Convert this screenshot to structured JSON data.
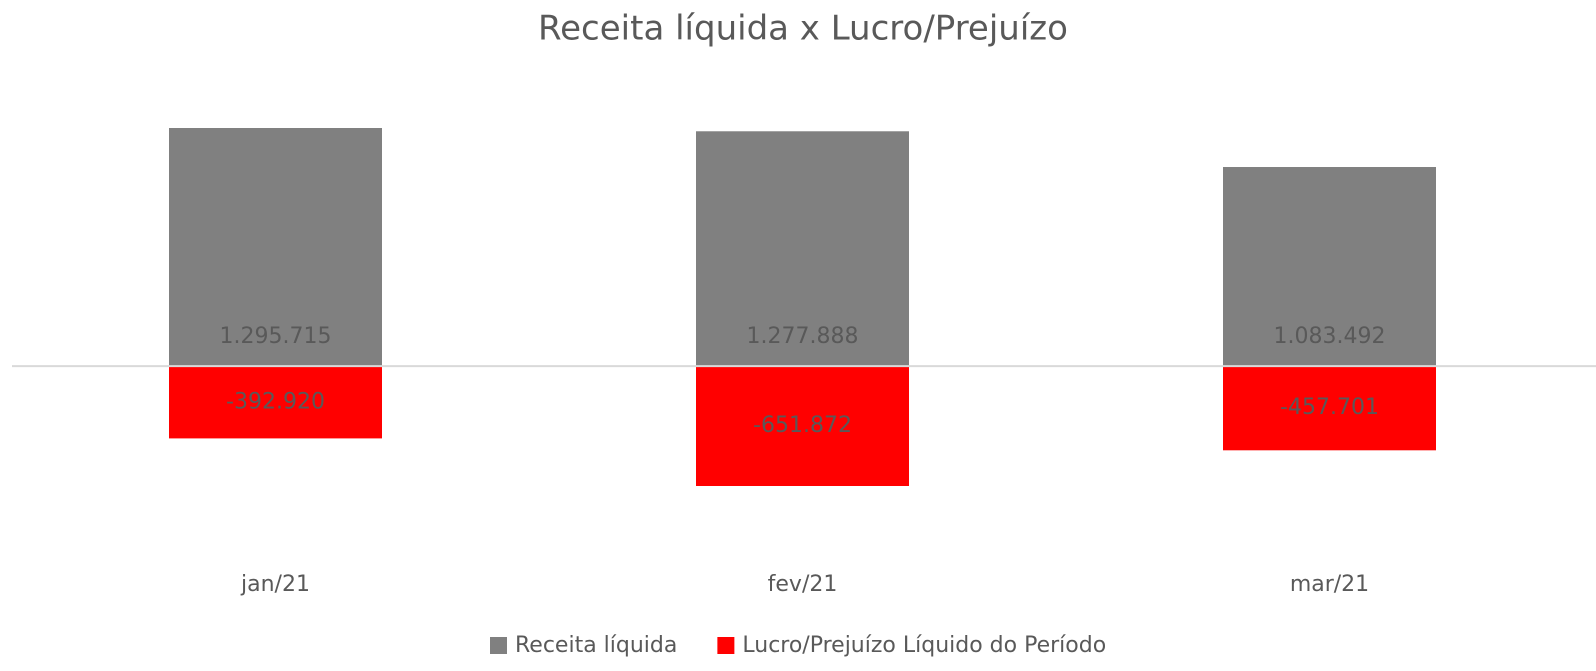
{
  "chart_data": {
    "type": "bar",
    "title": "Receita líquida x Lucro/Prejuízo",
    "categories": [
      "jan/21",
      "fev/21",
      "mar/21"
    ],
    "series": [
      {
        "name": "Receita líquida",
        "color": "#808080",
        "values": [
          1295715,
          1277888,
          1083492
        ],
        "value_labels": [
          "1.295.715",
          "1.277.888",
          "1.083.492"
        ]
      },
      {
        "name": "Lucro/Prejuízo Líquido do Período",
        "color": "#ff0000",
        "values": [
          -392920,
          -651872,
          -457701
        ],
        "value_labels": [
          "-392.920",
          "-651.872",
          "-457.701"
        ]
      }
    ],
    "overlap": true,
    "legend": "bottom"
  }
}
